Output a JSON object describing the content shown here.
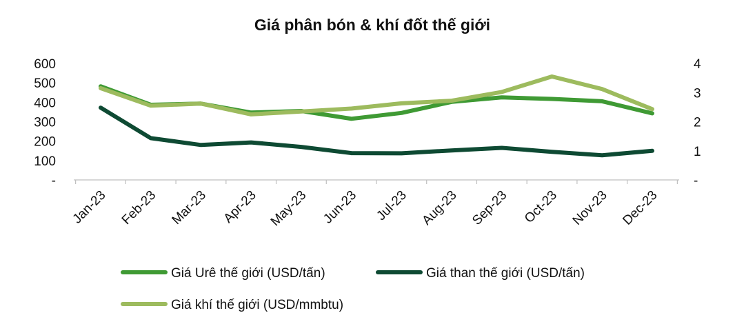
{
  "chart_data": {
    "type": "line",
    "title": "Giá phân bón & khí đốt thế giới",
    "categories": [
      "Jan-23",
      "Feb-23",
      "Mar-23",
      "Apr-23",
      "May-23",
      "Jun-23",
      "Jul-23",
      "Aug-23",
      "Sep-23",
      "Oct-23",
      "Nov-23",
      "Dec-23"
    ],
    "y_left": {
      "min": 0,
      "max": 600,
      "ticks": [
        "-",
        "100",
        "200",
        "300",
        "400",
        "500",
        "600"
      ]
    },
    "y_right": {
      "min": 0,
      "max": 4,
      "ticks": [
        "-",
        "1",
        "2",
        "3",
        "4"
      ]
    },
    "grid": false,
    "legend_position": "bottom",
    "series": [
      {
        "name": "Giá Urê thế giới (USD/tấn)",
        "axis": "left",
        "color": "#3f9a34",
        "values": [
          482,
          387,
          393,
          347,
          355,
          315,
          345,
          402,
          425,
          417,
          405,
          343
        ]
      },
      {
        "name": "Giá than thế giới (USD/tấn)",
        "axis": "left",
        "color": "#0e4a33",
        "values": [
          372,
          215,
          180,
          193,
          170,
          138,
          137,
          152,
          165,
          145,
          127,
          150
        ]
      },
      {
        "name": "Giá khí thế giới (USD/mmbtu)",
        "axis": "right",
        "color": "#9dbb5e",
        "values": [
          3.15,
          2.55,
          2.62,
          2.25,
          2.35,
          2.45,
          2.63,
          2.72,
          3.02,
          3.55,
          3.12,
          2.43
        ]
      }
    ]
  }
}
